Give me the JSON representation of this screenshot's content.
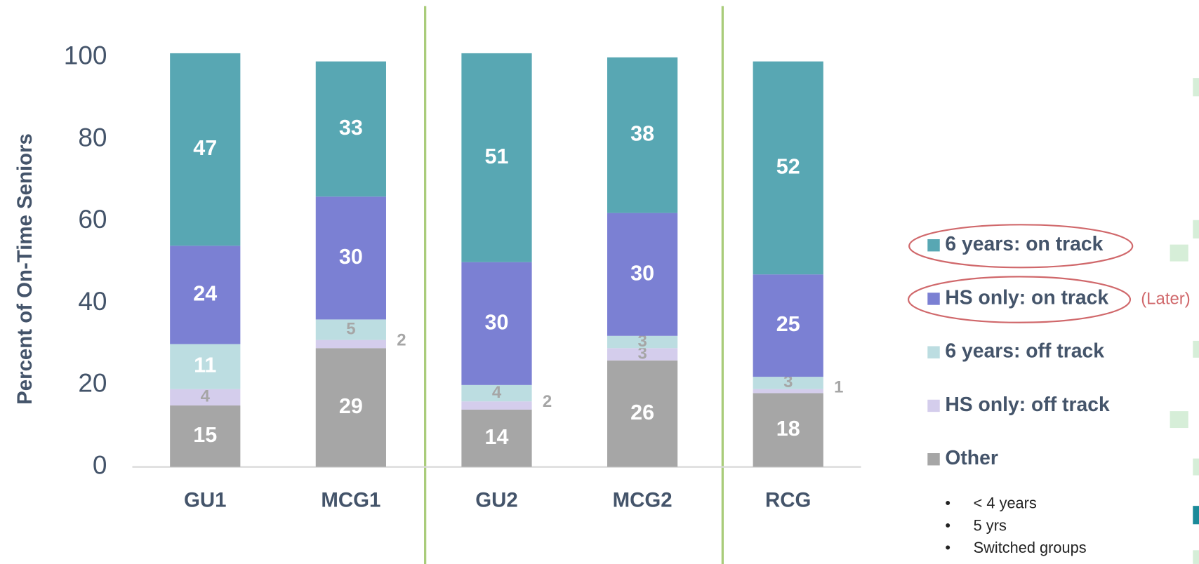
{
  "chart_data": {
    "type": "stacked_bar",
    "y_label": "Percent of On-Time Seniors",
    "categories": [
      "GU1",
      "MCG1",
      "GU2",
      "MCG2",
      "RCG"
    ],
    "series": [
      {
        "name": "Other",
        "color": "#a6a6a6",
        "values": [
          15,
          29,
          14,
          26,
          18
        ]
      },
      {
        "name": "HS only: off track",
        "color": "#d4cdec",
        "values": [
          4,
          2,
          2,
          3,
          1
        ]
      },
      {
        "name": "6 years: off track",
        "color": "#bcdde1",
        "values": [
          11,
          5,
          4,
          3,
          3
        ]
      },
      {
        "name": "HS only: on track",
        "color": "#7b80d3",
        "values": [
          24,
          30,
          30,
          30,
          25
        ]
      },
      {
        "name": "6 years: on track",
        "color": "#58a7b3",
        "values": [
          47,
          33,
          51,
          38,
          52
        ]
      }
    ],
    "ylim": [
      0,
      100
    ],
    "yticks": [
      0,
      20,
      40,
      60,
      80,
      100
    ],
    "legend": "right",
    "annotation": "(Later)",
    "legend_notes": [
      "< 4 years",
      "5 yrs",
      "Switched groups"
    ]
  }
}
